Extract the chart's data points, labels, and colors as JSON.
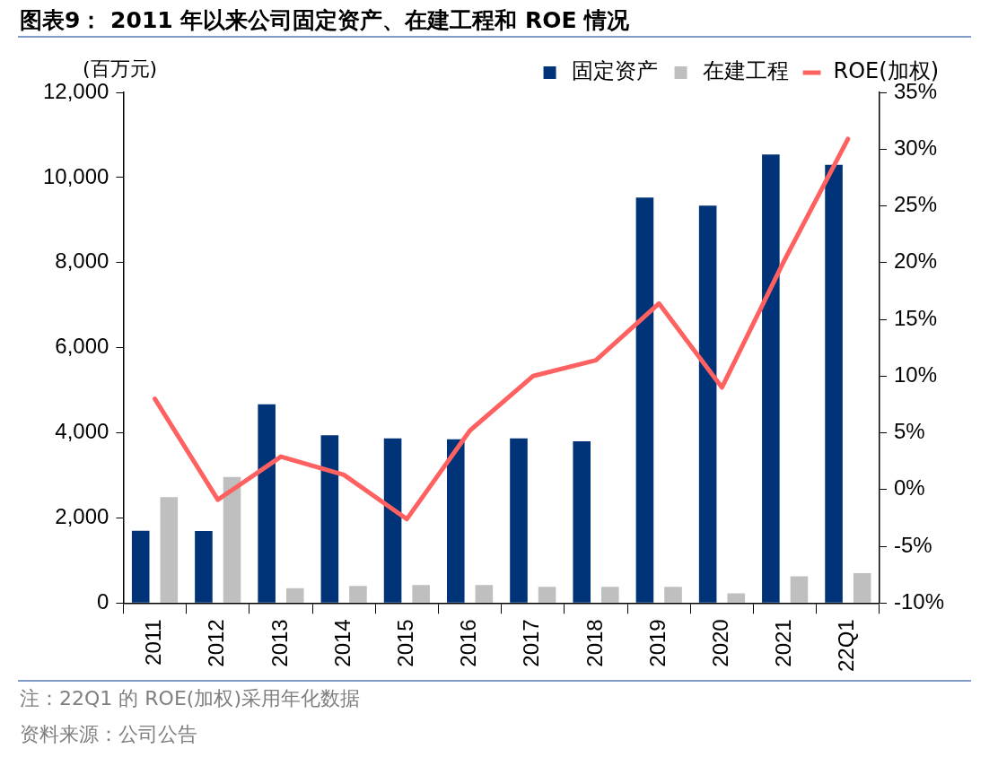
{
  "chart_data": {
    "type": "bar",
    "title": "图表9：  2011 年以来公司固定资产、在建工程和 ROE 情况",
    "ylabel": "(百万元)",
    "categories": [
      "2011",
      "2012",
      "2013",
      "2014",
      "2015",
      "2016",
      "2017",
      "2018",
      "2019",
      "2020",
      "2021",
      "22Q1"
    ],
    "series": [
      {
        "name": "固定资产",
        "color": "#003378",
        "values": [
          1700,
          1690,
          4670,
          3940,
          3870,
          3850,
          3870,
          3800,
          9530,
          9340,
          10540,
          10300
        ]
      },
      {
        "name": "在建工程",
        "color": "#bfbfbf",
        "values": [
          2490,
          2960,
          350,
          400,
          420,
          420,
          380,
          380,
          380,
          230,
          630,
          700
        ]
      },
      {
        "name": "ROE(加权)",
        "type": "line",
        "axis": "y2",
        "color": "#ff6161",
        "marker": "none",
        "values": [
          8.0,
          -0.9,
          2.9,
          1.3,
          -2.6,
          5.2,
          10.0,
          11.4,
          16.4,
          9.0,
          20.3,
          30.9
        ]
      }
    ],
    "ylim": [
      0,
      12000
    ],
    "yticks": [
      0,
      {
        "value": 2000,
        "label": "2,000"
      },
      {
        "value": 4000,
        "label": "4,000"
      },
      {
        "value": 6000,
        "label": "6,000"
      },
      {
        "value": 8000,
        "label": "8,000"
      },
      {
        "value": 10000,
        "label": "10,000"
      },
      {
        "value": 12000,
        "label": "12,000"
      }
    ],
    "y2lim": [
      -10,
      35
    ],
    "y2ticks": [
      {
        "value": -10,
        "label": "-10%"
      },
      {
        "value": -5,
        "label": "-5%"
      },
      {
        "value": 0,
        "label": "0%"
      },
      {
        "value": 5,
        "label": "5%"
      },
      {
        "value": 10,
        "label": "10%"
      },
      {
        "value": 15,
        "label": "15%"
      },
      {
        "value": 20,
        "label": "20%"
      },
      {
        "value": 25,
        "label": "25%"
      },
      {
        "value": 30,
        "label": "30%"
      },
      {
        "value": 35,
        "label": "35%"
      }
    ],
    "grid": false,
    "legend": "top",
    "annotations": [
      "注：22Q1 的 ROE(加权)采用年化数据",
      "资料来源：公司公告"
    ]
  }
}
